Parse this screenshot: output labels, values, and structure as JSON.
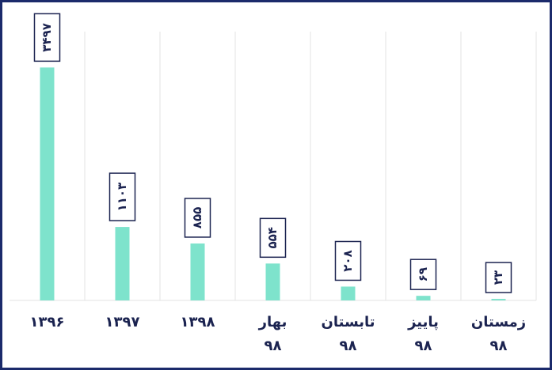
{
  "chart_data": {
    "type": "bar",
    "categories": [
      [
        "۱۳۹۶"
      ],
      [
        "۱۳۹۷"
      ],
      [
        "۱۳۹۸"
      ],
      [
        "بهار",
        "۹۸"
      ],
      [
        "تابستان",
        "۹۸"
      ],
      [
        "پاییز",
        "۹۸"
      ],
      [
        "زمستان",
        "۹۸"
      ]
    ],
    "values": [
      3497,
      1103,
      855,
      554,
      208,
      69,
      23
    ],
    "value_labels": [
      "۳۴۹۷",
      "۱۱۰۳",
      "۸۵۵",
      "۵۵۴",
      "۲۰۸",
      "۶۹",
      "۲۳"
    ],
    "color": "#7ee3cc",
    "ylim": [
      0,
      4000
    ]
  }
}
